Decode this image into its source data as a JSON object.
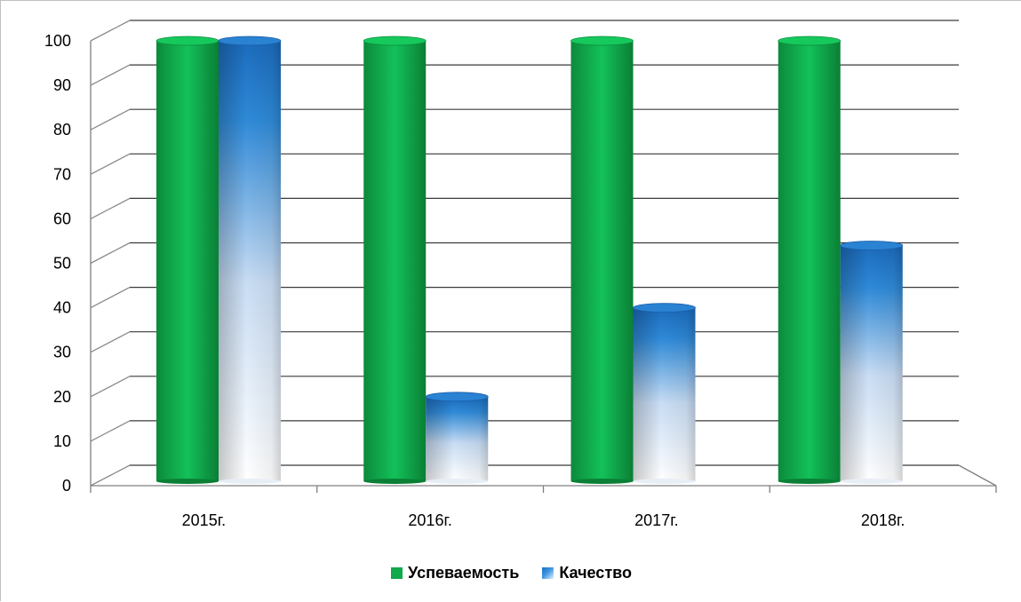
{
  "chart_data": {
    "type": "bar",
    "categories": [
      "2015г.",
      "2016г.",
      "2017г.",
      "2018г."
    ],
    "series": [
      {
        "name": "Успеваемость",
        "values": [
          97,
          97,
          97,
          97
        ]
      },
      {
        "name": "Качество",
        "values": [
          97,
          17,
          37,
          51
        ]
      }
    ],
    "y_ticks": [
      "0",
      "10",
      "20",
      "30",
      "40",
      "50",
      "60",
      "70",
      "80",
      "90",
      "100"
    ],
    "ylim": [
      0,
      100
    ],
    "grid": true,
    "legend_position": "bottom",
    "colors": {
      "Успеваемость": "#10a94b",
      "Качество": "#2f86d4"
    },
    "style": "3d-cylinder"
  }
}
